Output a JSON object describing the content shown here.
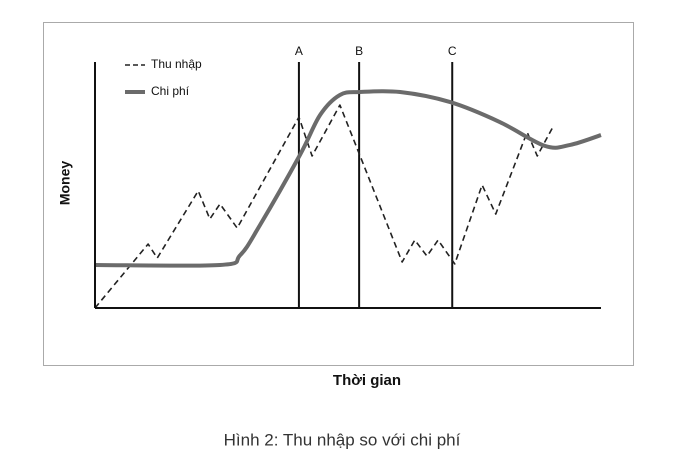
{
  "chart_data": {
    "type": "line",
    "caption": "Hình 2: Thu nhập so với chi phí",
    "x_label": "Thời gian",
    "y_label": "Money",
    "xlim": [
      0,
      100
    ],
    "ylim": [
      0,
      100
    ],
    "legend": "upper left",
    "series": [
      {
        "name": "Thu nhập",
        "color": "#222222",
        "dash": true,
        "x": [
          0,
          10.5,
          12.3,
          20.4,
          22.7,
          24.7,
          28.1,
          40.3,
          42.9,
          48.4,
          60.7,
          63.2,
          65.6,
          67.8,
          71.1,
          76.5,
          79.2,
          85.4,
          87.4,
          90.5
        ],
        "values": [
          0,
          26.0,
          20.3,
          47.6,
          36.2,
          42.3,
          32.5,
          77.6,
          61.8,
          82.5,
          18.7,
          27.6,
          21.1,
          27.6,
          17.9,
          50.0,
          38.2,
          71.5,
          61.8,
          73.6
        ]
      },
      {
        "name": "Chi phí",
        "color": "#6b6b6b",
        "dash": false,
        "x": [
          0,
          24.7,
          28.7,
          32.6,
          40.5,
          44.5,
          48.4,
          52.4,
          60.3,
          70.2,
          80.0,
          88.9,
          93.9,
          100
        ],
        "values": [
          17.5,
          17.5,
          21.5,
          33.7,
          62.2,
          78.5,
          86.6,
          87.8,
          87.8,
          83.7,
          75.6,
          65.9,
          66.3,
          70.3
        ]
      }
    ],
    "markers": [
      {
        "label": "A",
        "x": 40.3
      },
      {
        "label": "B",
        "x": 52.2
      },
      {
        "label": "C",
        "x": 70.6
      }
    ]
  }
}
